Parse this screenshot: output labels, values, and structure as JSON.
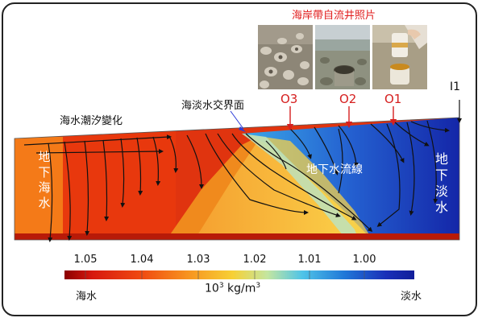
{
  "photos": {
    "title": "海岸帶自流井照片",
    "items": [
      {
        "label": "O3"
      },
      {
        "label": "O2"
      },
      {
        "label": "O1"
      }
    ]
  },
  "annotations": {
    "well_i1": "I1",
    "tide": "海水潮汐變化",
    "interface": "海淡水交界面",
    "streamlines": "地下水流線",
    "groundwater_sea": "地下海水",
    "groundwater_fresh": "地下淡水"
  },
  "colorbar": {
    "ticks": [
      "1.05",
      "1.04",
      "1.03",
      "1.02",
      "1.01",
      "1.00"
    ],
    "unit_base": "10",
    "unit_exp": "3",
    "unit_rest": " kg/m",
    "unit_exp2": "3",
    "left_label": "海水",
    "right_label": "淡水"
  },
  "colors": {
    "sea": "#d9230f",
    "mid": "#f7c13a",
    "fresh": "#1a2fb8",
    "marker": "#d62020"
  }
}
